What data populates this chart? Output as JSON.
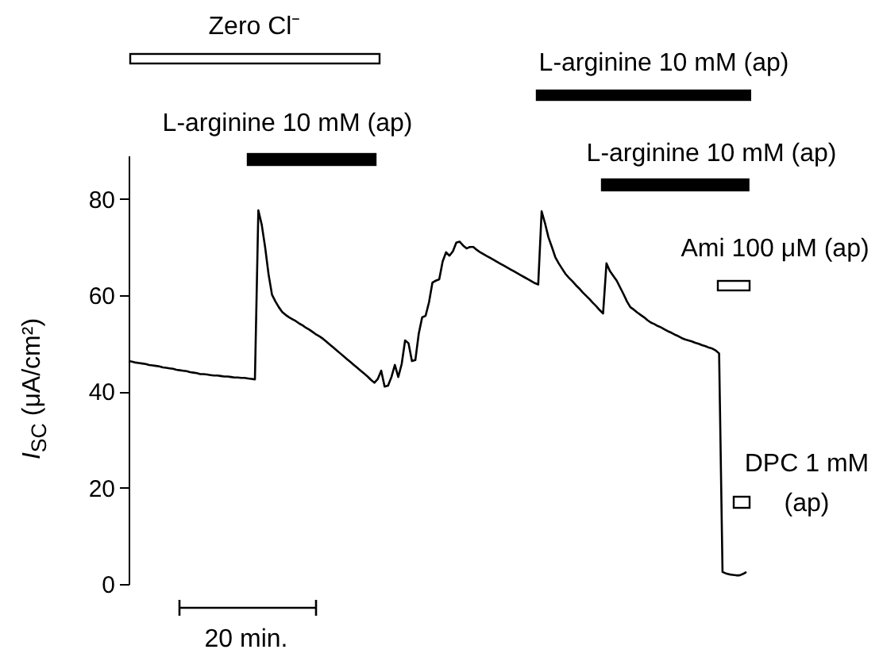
{
  "chart_data": {
    "type": "line",
    "ylabel": "I$_{SC}$ (μA/cm²)",
    "ylim": [
      0,
      89
    ],
    "yticks": [
      0,
      20,
      40,
      60,
      80
    ],
    "tick_labels": "y",
    "grid": false,
    "marker": "none",
    "line_style": "solid",
    "categories": [
      null,
      null,
      null,
      null,
      null,
      null,
      null,
      null,
      null,
      null,
      null,
      null,
      null,
      null,
      null,
      null,
      null,
      null,
      null,
      null,
      null,
      null,
      null,
      null,
      null,
      null,
      null,
      null,
      null,
      null,
      null,
      null,
      null,
      null,
      null,
      null,
      null,
      null,
      null,
      null,
      null,
      null,
      null,
      null,
      null,
      null,
      null,
      null,
      null,
      null,
      null,
      null,
      null,
      null,
      null,
      null,
      null,
      null,
      null,
      null,
      null,
      null,
      null,
      null,
      null,
      null,
      null,
      null,
      null,
      null,
      null,
      null,
      null,
      null,
      null,
      null,
      null,
      null,
      null,
      null,
      null,
      null,
      null,
      null,
      null,
      null,
      null,
      null,
      null,
      null,
      null,
      null,
      null,
      null,
      null,
      null,
      null,
      null,
      null,
      null,
      null,
      null,
      null,
      null,
      null,
      null,
      null,
      null,
      null,
      null,
      null,
      null,
      null,
      null,
      null,
      null,
      null,
      null,
      null,
      null,
      null,
      null,
      null,
      null,
      null,
      null,
      null,
      null,
      null,
      null,
      null,
      null,
      null,
      null,
      null,
      null,
      null,
      null,
      null,
      null,
      null,
      null,
      null,
      null,
      null,
      null,
      null,
      null,
      null,
      null,
      null,
      null,
      null,
      null,
      null,
      null,
      null,
      null,
      null,
      null,
      null,
      null,
      null,
      null,
      null,
      null,
      null,
      null,
      null,
      null,
      null,
      null,
      null,
      null,
      null,
      null,
      null,
      null,
      null,
      null,
      null,
      null
    ],
    "series": [
      {
        "color": "#000000",
        "values": [
          46.3,
          46.2,
          46.0,
          45.9,
          45.8,
          45.7,
          45.5,
          45.4,
          45.3,
          45.2,
          45.0,
          44.9,
          44.8,
          44.7,
          44.5,
          44.4,
          44.3,
          44.2,
          44.0,
          43.9,
          43.8,
          43.6,
          43.6,
          43.5,
          43.4,
          43.3,
          43.3,
          43.2,
          43.1,
          43.1,
          43.0,
          42.9,
          42.9,
          42.8,
          42.8,
          42.7,
          42.6,
          42.5,
          77.6,
          74.6,
          69.9,
          64.3,
          60.1,
          58.7,
          57.5,
          56.5,
          55.9,
          55.4,
          55.0,
          54.6,
          54.1,
          53.7,
          53.2,
          52.8,
          52.3,
          51.8,
          51.4,
          50.9,
          50.3,
          49.7,
          49.1,
          48.5,
          47.9,
          47.3,
          46.7,
          46.1,
          45.5,
          44.9,
          44.3,
          43.7,
          43.1,
          42.4,
          41.8,
          42.6,
          44.3,
          41.0,
          41.2,
          43.0,
          45.5,
          43.0,
          45.7,
          50.6,
          50.0,
          46.3,
          46.5,
          52.0,
          55.4,
          55.7,
          58.5,
          62.6,
          63.0,
          63.3,
          67.0,
          68.9,
          68.2,
          69.1,
          70.9,
          71.1,
          70.3,
          69.7,
          70.0,
          70.0,
          69.4,
          68.9,
          68.5,
          68.1,
          67.7,
          67.3,
          66.9,
          66.5,
          66.1,
          65.7,
          65.3,
          64.9,
          64.5,
          64.1,
          63.7,
          63.3,
          62.9,
          62.5,
          62.2,
          77.4,
          74.9,
          72.0,
          70.0,
          67.9,
          66.6,
          65.5,
          64.4,
          63.6,
          62.9,
          62.1,
          61.4,
          60.6,
          59.9,
          59.2,
          58.4,
          57.7,
          56.9,
          56.2,
          66.6,
          65.0,
          64.0,
          63.0,
          61.6,
          60.2,
          58.7,
          57.5,
          57.0,
          56.4,
          55.9,
          55.4,
          54.8,
          54.3,
          54.0,
          53.6,
          53.3,
          52.9,
          52.5,
          52.2,
          51.8,
          51.5,
          51.1,
          50.8,
          50.6,
          50.4,
          50.1,
          49.9,
          49.6,
          49.4,
          49.1,
          48.9,
          48.5,
          47.9,
          2.5,
          2.2,
          2.0,
          1.9,
          1.8,
          1.8,
          2.1,
          2.5
        ]
      }
    ],
    "annotations": [
      "Zero Cl⁻",
      "L-arginine 10 mM (ap)",
      "L-arginine 10 mM (ap)",
      "L-arginine 10 mM (ap)",
      "Ami 100 μM (ap)",
      "DPC 1 mM (ap)",
      "20 min."
    ]
  }
}
